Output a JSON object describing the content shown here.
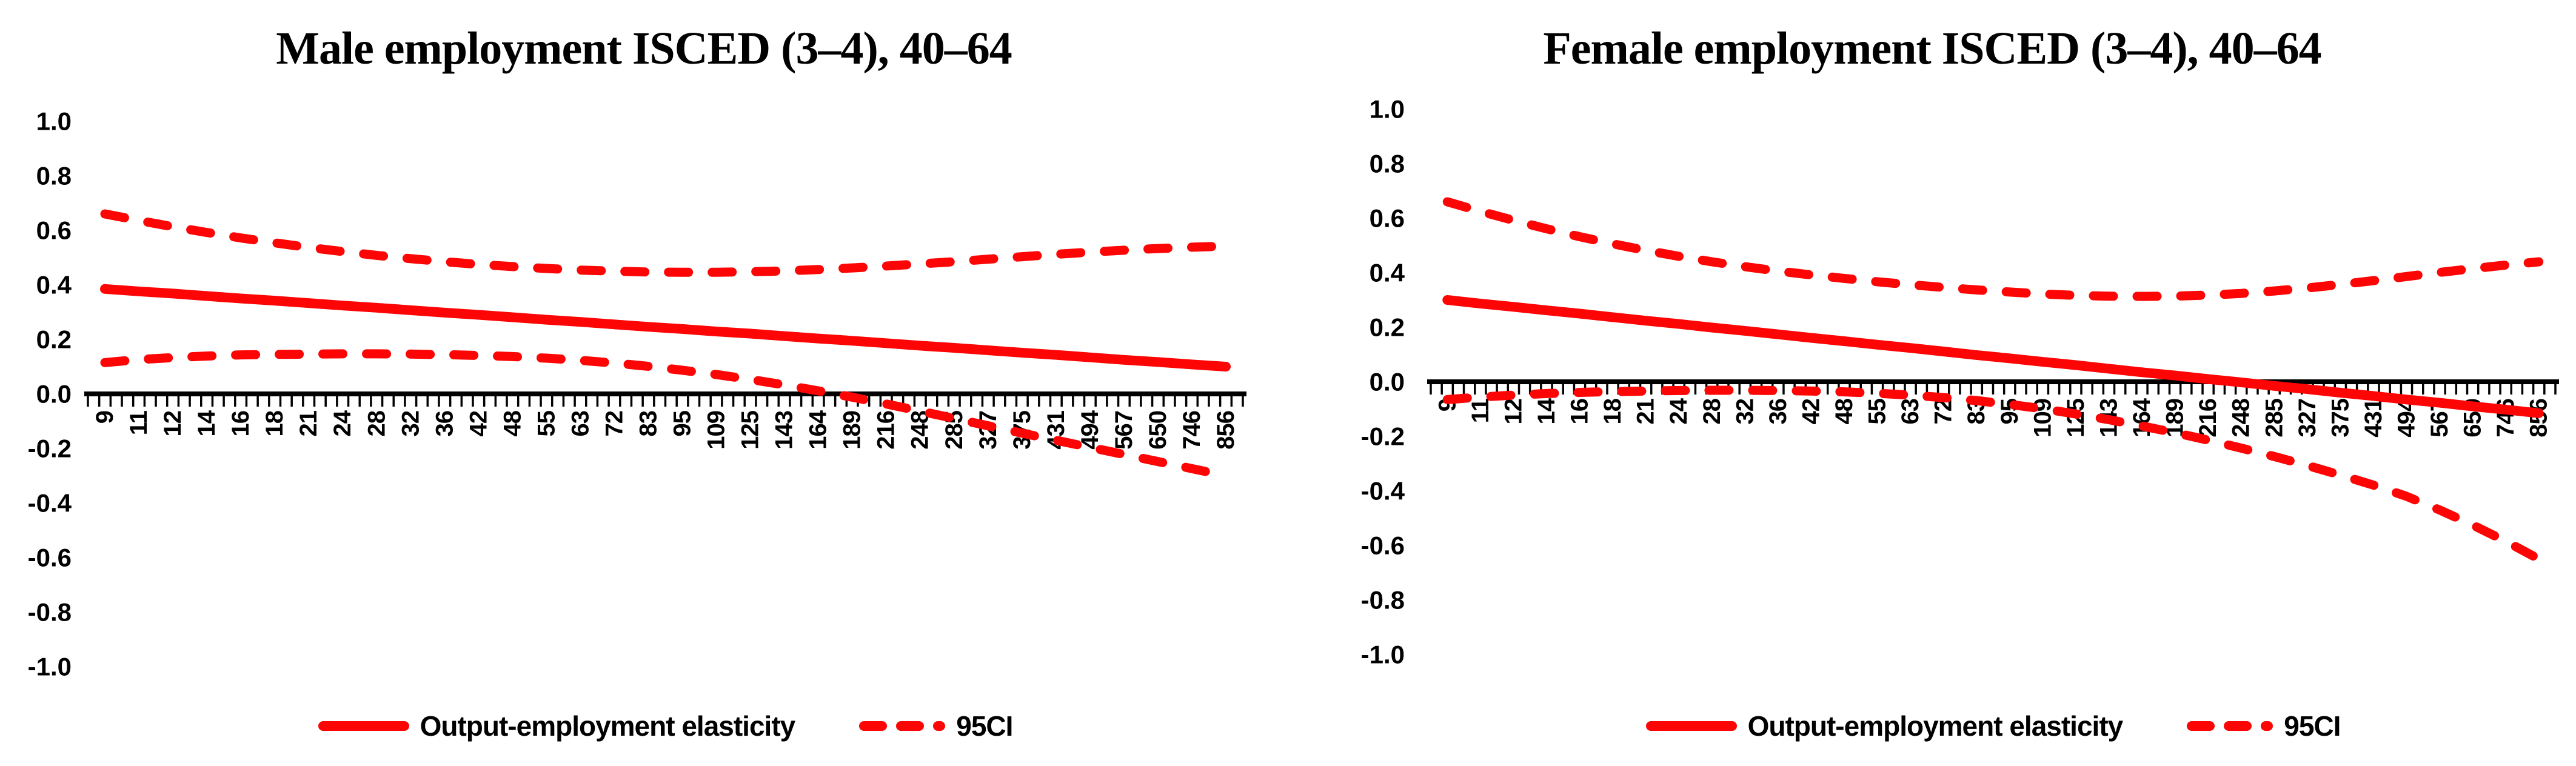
{
  "colors": {
    "series_red": "#fe0505",
    "axis_black": "#000000",
    "text_black": "#000000",
    "background": "#ffffff"
  },
  "chart_data": [
    {
      "type": "line",
      "title": "Male employment ISCED (3–4), 40–64",
      "xlabel": "",
      "ylabel": "",
      "ylim": [
        -1.0,
        1.0
      ],
      "yticks": [
        1.0,
        0.8,
        0.6,
        0.4,
        0.2,
        0.0,
        -0.2,
        -0.4,
        -0.6,
        -0.8,
        -1.0
      ],
      "grid": false,
      "legend_position": "bottom",
      "legend": [
        "Output-employment elasticity",
        "95CI"
      ],
      "categories": [
        9,
        11,
        12,
        14,
        16,
        18,
        21,
        24,
        28,
        32,
        36,
        42,
        48,
        55,
        63,
        72,
        83,
        95,
        109,
        125,
        143,
        164,
        189,
        216,
        248,
        285,
        327,
        375,
        431,
        494,
        567,
        650,
        746,
        856
      ],
      "series": [
        {
          "name": "Output-employment elasticity",
          "line_style": "solid",
          "values": [
            0.385,
            0.376,
            0.368,
            0.359,
            0.35,
            0.342,
            0.333,
            0.324,
            0.316,
            0.307,
            0.298,
            0.29,
            0.281,
            0.272,
            0.264,
            0.255,
            0.246,
            0.238,
            0.229,
            0.221,
            0.212,
            0.203,
            0.195,
            0.186,
            0.177,
            0.169,
            0.16,
            0.151,
            0.143,
            0.134,
            0.125,
            0.117,
            0.108,
            0.1
          ]
        },
        {
          "name": "95CI upper",
          "line_style": "dashed",
          "values": [
            0.66,
            0.636,
            0.613,
            0.592,
            0.572,
            0.554,
            0.537,
            0.522,
            0.508,
            0.496,
            0.485,
            0.475,
            0.467,
            0.46,
            0.454,
            0.45,
            0.447,
            0.446,
            0.446,
            0.448,
            0.451,
            0.456,
            0.462,
            0.469,
            0.477,
            0.485,
            0.494,
            0.503,
            0.512,
            0.52,
            0.527,
            0.533,
            0.538,
            0.542
          ]
        },
        {
          "name": "95CI lower",
          "line_style": "dashed",
          "values": [
            0.115,
            0.126,
            0.133,
            0.139,
            0.143,
            0.145,
            0.146,
            0.147,
            0.147,
            0.146,
            0.144,
            0.141,
            0.137,
            0.131,
            0.123,
            0.113,
            0.101,
            0.087,
            0.071,
            0.053,
            0.033,
            0.011,
            -0.012,
            -0.037,
            -0.063,
            -0.09,
            -0.117,
            -0.144,
            -0.17,
            -0.196,
            -0.222,
            -0.248,
            -0.274,
            -0.3
          ]
        }
      ]
    },
    {
      "type": "line",
      "title": "Female employment ISCED (3–4), 40–64",
      "xlabel": "",
      "ylabel": "",
      "ylim": [
        -1.0,
        1.0
      ],
      "yticks": [
        1.0,
        0.8,
        0.6,
        0.4,
        0.2,
        0.0,
        -0.2,
        -0.4,
        -0.6,
        -0.8,
        -1.0
      ],
      "grid": false,
      "legend_position": "bottom",
      "legend": [
        "Output-employment elasticity",
        "95CI"
      ],
      "categories": [
        9,
        11,
        12,
        14,
        16,
        18,
        21,
        24,
        28,
        32,
        36,
        42,
        48,
        55,
        63,
        72,
        83,
        95,
        109,
        125,
        143,
        164,
        189,
        216,
        248,
        285,
        327,
        375,
        431,
        494,
        567,
        650,
        746,
        856
      ],
      "series": [
        {
          "name": "Output-employment elasticity",
          "line_style": "solid",
          "values": [
            0.3,
            0.287,
            0.275,
            0.262,
            0.25,
            0.237,
            0.224,
            0.212,
            0.199,
            0.187,
            0.174,
            0.161,
            0.149,
            0.136,
            0.124,
            0.111,
            0.098,
            0.086,
            0.073,
            0.061,
            0.048,
            0.035,
            0.023,
            0.01,
            -0.002,
            -0.015,
            -0.027,
            -0.04,
            -0.052,
            -0.065,
            -0.077,
            -0.09,
            -0.102,
            -0.115
          ]
        },
        {
          "name": "95CI upper",
          "line_style": "dashed",
          "values": [
            0.66,
            0.625,
            0.592,
            0.561,
            0.532,
            0.506,
            0.482,
            0.46,
            0.44,
            0.422,
            0.406,
            0.392,
            0.379,
            0.367,
            0.356,
            0.346,
            0.337,
            0.329,
            0.322,
            0.317,
            0.314,
            0.313,
            0.314,
            0.318,
            0.324,
            0.333,
            0.344,
            0.357,
            0.371,
            0.386,
            0.401,
            0.415,
            0.428,
            0.44
          ]
        },
        {
          "name": "95CI lower",
          "line_style": "dashed",
          "values": [
            -0.065,
            -0.056,
            -0.049,
            -0.043,
            -0.039,
            -0.036,
            -0.034,
            -0.032,
            -0.031,
            -0.031,
            -0.032,
            -0.034,
            -0.037,
            -0.042,
            -0.049,
            -0.058,
            -0.069,
            -0.083,
            -0.099,
            -0.118,
            -0.139,
            -0.162,
            -0.187,
            -0.214,
            -0.243,
            -0.274,
            -0.307,
            -0.342,
            -0.379,
            -0.42,
            -0.47,
            -0.525,
            -0.585,
            -0.65
          ]
        }
      ]
    }
  ]
}
